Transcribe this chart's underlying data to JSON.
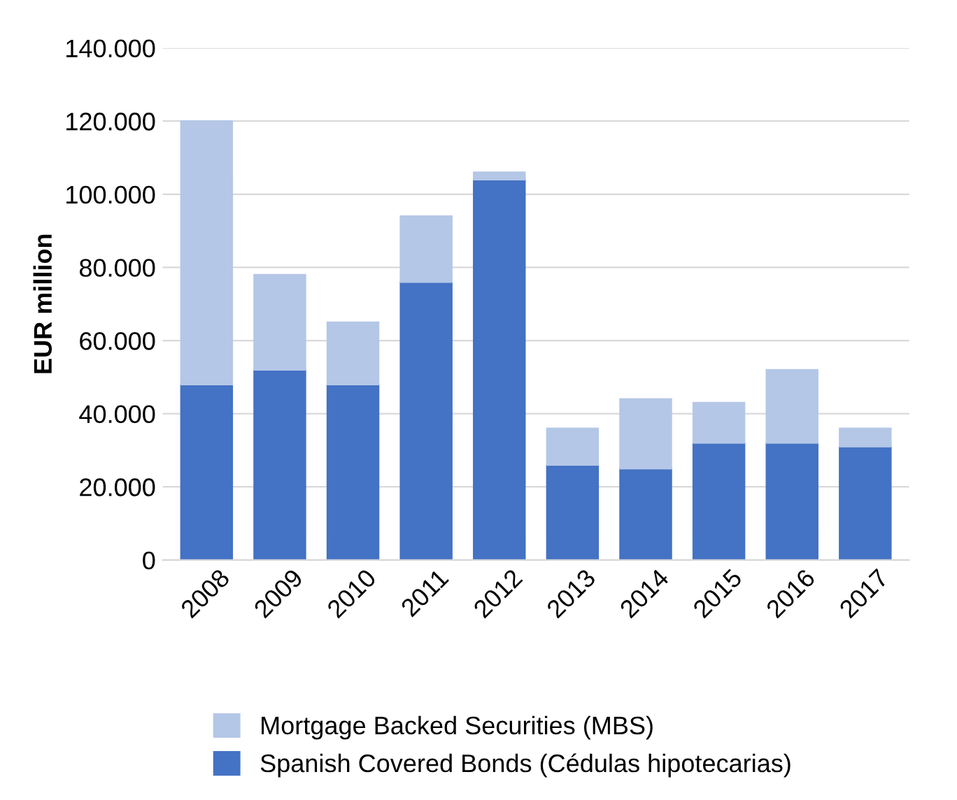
{
  "chart_data": {
    "type": "bar",
    "stacked": true,
    "ylabel": "EUR million",
    "categories": [
      "2008",
      "2009",
      "2010",
      "2011",
      "2012",
      "2013",
      "2014",
      "2015",
      "2016",
      "2017"
    ],
    "series": [
      {
        "name": "Spanish Covered Bonds (Cédulas hipotecarias)",
        "color": "#4472c4",
        "values": [
          48000,
          52000,
          48000,
          76000,
          104000,
          26000,
          25000,
          32000,
          32000,
          31000
        ]
      },
      {
        "name": "Mortgage Backed Securities (MBS)",
        "color": "#b4c7e7",
        "values": [
          72000,
          26000,
          17000,
          18000,
          2000,
          10000,
          19000,
          11000,
          20000,
          5000
        ]
      }
    ],
    "ylim": [
      0,
      140000
    ],
    "yticks": [
      {
        "value": 0,
        "label": "0"
      },
      {
        "value": 20000,
        "label": "20.000"
      },
      {
        "value": 40000,
        "label": "40.000"
      },
      {
        "value": 60000,
        "label": "60.000"
      },
      {
        "value": 80000,
        "label": "80.000"
      },
      {
        "value": 100000,
        "label": "100.000"
      },
      {
        "value": 120000,
        "label": "120.000"
      },
      {
        "value": 140000,
        "label": "140.000"
      }
    ],
    "grid": "y",
    "legend": "bottom"
  }
}
